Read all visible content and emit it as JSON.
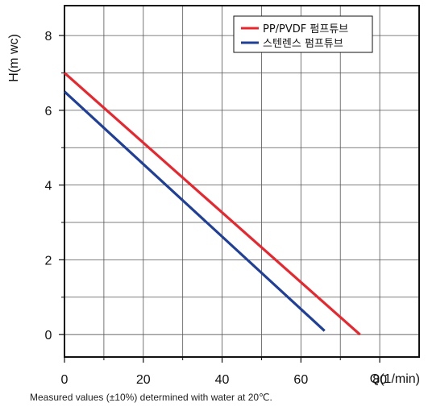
{
  "chart_data": {
    "type": "line",
    "title": "",
    "xlabel": "Q(1/min)",
    "ylabel": "H(m wc)",
    "xlim": [
      0,
      90
    ],
    "ylim": [
      -0.6,
      8.8
    ],
    "xticks": [
      0,
      20,
      40,
      60,
      80
    ],
    "xtick_labels": [
      "0",
      "20",
      "40",
      "60",
      "80"
    ],
    "yticks": [
      0,
      2,
      4,
      6,
      8
    ],
    "ytick_labels": [
      "0",
      "2",
      "4",
      "6",
      "8"
    ],
    "minor_x": [
      10,
      30,
      50,
      70
    ],
    "minor_y": [
      1,
      3,
      5,
      7
    ],
    "grid": true,
    "legend_position": "top-right",
    "series": [
      {
        "name": "PP/PVDF 펌프튜브",
        "color": "#e8262e",
        "x": [
          0,
          75
        ],
        "y": [
          7.0,
          0.0
        ]
      },
      {
        "name": "스텐렌스 펌프튜브",
        "color": "#1f3f99",
        "x": [
          0,
          66
        ],
        "y": [
          6.5,
          0.1
        ]
      }
    ]
  },
  "footnote": "Measured values (±10%) determined with water at 20℃."
}
